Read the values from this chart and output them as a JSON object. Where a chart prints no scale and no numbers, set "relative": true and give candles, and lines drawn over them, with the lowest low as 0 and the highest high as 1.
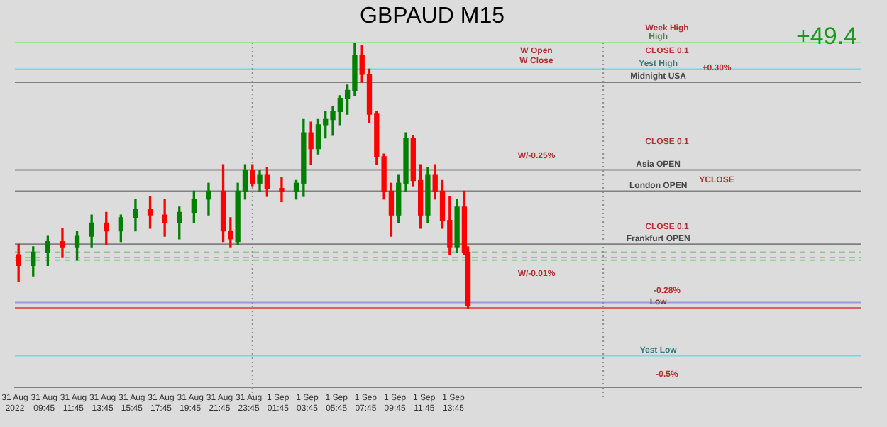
{
  "chart_data": {
    "type": "candlestick",
    "title": "GBPAUD M15",
    "relative": true,
    "x": [
      "2022-08-31T08:00",
      "2022-08-31T09:00",
      "2022-08-31T10:00",
      "2022-08-31T11:00",
      "2022-08-31T12:00",
      "2022-08-31T13:00",
      "2022-08-31T14:00",
      "2022-08-31T15:00",
      "2022-08-31T16:00",
      "2022-08-31T17:00",
      "2022-08-31T18:00",
      "2022-08-31T19:00",
      "2022-08-31T20:00",
      "2022-08-31T21:00",
      "2022-08-31T22:00",
      "2022-08-31T22:30",
      "2022-08-31T23:00",
      "2022-08-31T23:30",
      "2022-09-01T00:00",
      "2022-09-01T00:30",
      "2022-09-01T01:00",
      "2022-09-01T02:00",
      "2022-09-01T03:00",
      "2022-09-01T03:30",
      "2022-09-01T04:00",
      "2022-09-01T04:30",
      "2022-09-01T05:00",
      "2022-09-01T05:30",
      "2022-09-01T06:00",
      "2022-09-01T06:30",
      "2022-09-01T07:00",
      "2022-09-01T07:30",
      "2022-09-01T08:00",
      "2022-09-01T08:30",
      "2022-09-01T09:00",
      "2022-09-01T09:30",
      "2022-09-01T10:00",
      "2022-09-01T10:30",
      "2022-09-01T11:00",
      "2022-09-01T11:30",
      "2022-09-01T12:00",
      "2022-09-01T12:30",
      "2022-09-01T13:00",
      "2022-09-01T13:30",
      "2022-09-01T14:00",
      "2022-09-01T14:30",
      "2022-09-01T14:45"
    ],
    "ohlc": [
      [
        0.2,
        0.24,
        0.1,
        0.16
      ],
      [
        0.16,
        0.23,
        0.12,
        0.21
      ],
      [
        0.21,
        0.27,
        0.16,
        0.25
      ],
      [
        0.25,
        0.3,
        0.19,
        0.23
      ],
      [
        0.23,
        0.29,
        0.18,
        0.27
      ],
      [
        0.27,
        0.35,
        0.23,
        0.32
      ],
      [
        0.32,
        0.36,
        0.24,
        0.29
      ],
      [
        0.29,
        0.35,
        0.25,
        0.34
      ],
      [
        0.34,
        0.41,
        0.29,
        0.37
      ],
      [
        0.37,
        0.42,
        0.3,
        0.35
      ],
      [
        0.35,
        0.41,
        0.27,
        0.32
      ],
      [
        0.32,
        0.38,
        0.26,
        0.36
      ],
      [
        0.36,
        0.44,
        0.32,
        0.41
      ],
      [
        0.41,
        0.47,
        0.35,
        0.44
      ],
      [
        0.44,
        0.54,
        0.25,
        0.29
      ],
      [
        0.29,
        0.34,
        0.23,
        0.26
      ],
      [
        0.25,
        0.47,
        0.24,
        0.44
      ],
      [
        0.44,
        0.54,
        0.41,
        0.52
      ],
      [
        0.52,
        0.54,
        0.46,
        0.47
      ],
      [
        0.47,
        0.52,
        0.44,
        0.5
      ],
      [
        0.5,
        0.53,
        0.42,
        0.45
      ],
      [
        0.45,
        0.49,
        0.4,
        0.44
      ],
      [
        0.44,
        0.48,
        0.41,
        0.47
      ],
      [
        0.47,
        0.71,
        0.42,
        0.66
      ],
      [
        0.66,
        0.7,
        0.54,
        0.6
      ],
      [
        0.6,
        0.71,
        0.58,
        0.69
      ],
      [
        0.69,
        0.74,
        0.64,
        0.71
      ],
      [
        0.71,
        0.76,
        0.65,
        0.74
      ],
      [
        0.74,
        0.8,
        0.69,
        0.79
      ],
      [
        0.79,
        0.84,
        0.73,
        0.82
      ],
      [
        0.82,
        1.0,
        0.8,
        0.95
      ],
      [
        0.95,
        0.99,
        0.85,
        0.88
      ],
      [
        0.88,
        0.9,
        0.7,
        0.73
      ],
      [
        0.73,
        0.74,
        0.54,
        0.57
      ],
      [
        0.57,
        0.58,
        0.41,
        0.44
      ],
      [
        0.44,
        0.47,
        0.27,
        0.35
      ],
      [
        0.35,
        0.5,
        0.32,
        0.47
      ],
      [
        0.47,
        0.66,
        0.44,
        0.64
      ],
      [
        0.64,
        0.65,
        0.46,
        0.48
      ],
      [
        0.48,
        0.54,
        0.3,
        0.35
      ],
      [
        0.35,
        0.53,
        0.32,
        0.5
      ],
      [
        0.5,
        0.54,
        0.41,
        0.44
      ],
      [
        0.44,
        0.48,
        0.3,
        0.33
      ],
      [
        0.33,
        0.42,
        0.2,
        0.23
      ],
      [
        0.23,
        0.41,
        0.21,
        0.38
      ],
      [
        0.38,
        0.44,
        0.2,
        0.21
      ],
      [
        0.21,
        0.23,
        0,
        0.01
      ]
    ],
    "colors": [
      "#ff0000",
      "#008000",
      "#008000",
      "#ff0000",
      "#008000",
      "#008000",
      "#ff0000",
      "#008000",
      "#008000",
      "#ff0000",
      "#ff0000",
      "#008000",
      "#008000",
      "#008000",
      "#ff0000",
      "#ff0000",
      "#008000",
      "#008000",
      "#ff0000",
      "#008000",
      "#ff0000",
      "#ff0000",
      "#008000",
      "#008000",
      "#ff0000",
      "#008000",
      "#008000",
      "#008000",
      "#008000",
      "#008000",
      "#008000",
      "#ff0000",
      "#ff0000",
      "#ff0000",
      "#ff0000",
      "#ff0000",
      "#008000",
      "#008000",
      "#ff0000",
      "#ff0000",
      "#008000",
      "#ff0000",
      "#ff0000",
      "#ff0000",
      "#008000",
      "#ff0000",
      "#ff0000"
    ],
    "xlim": [
      "2022-08-31T07:45",
      "2022-09-02T17:40"
    ],
    "xticks": [
      {
        "value": "2022-08-31T07:45",
        "label": "31 Aug 2022"
      },
      {
        "value": "2022-08-31T09:45",
        "label": "31 Aug 09:45"
      },
      {
        "value": "2022-08-31T11:45",
        "label": "31 Aug 11:45"
      },
      {
        "value": "2022-08-31T13:45",
        "label": "31 Aug 13:45"
      },
      {
        "value": "2022-08-31T15:45",
        "label": "31 Aug 15:45"
      },
      {
        "value": "2022-08-31T17:45",
        "label": "31 Aug 17:45"
      },
      {
        "value": "2022-08-31T19:45",
        "label": "31 Aug 19:45"
      },
      {
        "value": "2022-08-31T21:45",
        "label": "31 Aug 21:45"
      },
      {
        "value": "2022-08-31T23:45",
        "label": "31 Aug 23:45"
      },
      {
        "value": "2022-09-01T01:45",
        "label": "1 Sep 01:45"
      },
      {
        "value": "2022-09-01T03:45",
        "label": "1 Sep 03:45"
      },
      {
        "value": "2022-09-01T05:45",
        "label": "1 Sep 05:45"
      },
      {
        "value": "2022-09-01T07:45",
        "label": "1 Sep 07:45"
      },
      {
        "value": "2022-09-01T09:45",
        "label": "1 Sep 09:45"
      },
      {
        "value": "2022-09-01T11:45",
        "label": "1 Sep 11:45"
      },
      {
        "value": "2022-09-01T13:45",
        "label": "1 Sep 13:45"
      }
    ],
    "ref_lines": [
      {
        "axis": "y",
        "value": 1.0,
        "label": "High",
        "color": "#9be09b"
      },
      {
        "axis": "y",
        "value": 0.9,
        "label": "Yest High",
        "color": "#66e0e0"
      },
      {
        "axis": "y",
        "value": 0.85,
        "label": "Midnight USA",
        "color": "#808080"
      },
      {
        "axis": "y",
        "value": 0.52,
        "label": "Asia OPEN",
        "color": "#808080"
      },
      {
        "axis": "y",
        "value": 0.44,
        "label": "London OPEN",
        "color": "#808080"
      },
      {
        "axis": "y",
        "value": 0.24,
        "label": "Frankfurt OPEN",
        "color": "#808080"
      },
      {
        "axis": "y",
        "value": 0.21,
        "color": "#90c890",
        "line_style": "dashed"
      },
      {
        "axis": "y",
        "value": 0.19,
        "color": "#90c890",
        "line_style": "dashed"
      },
      {
        "axis": "y",
        "value": 0.18,
        "color": "#90c890",
        "line_style": "dashed"
      },
      {
        "axis": "y",
        "value": 0.02,
        "color": "#9999dd"
      },
      {
        "axis": "y",
        "value": 0,
        "label": "Low",
        "color": "#e06060"
      },
      {
        "axis": "y",
        "value": -0.18,
        "label": "Yest Low",
        "color": "#66e0e0"
      },
      {
        "axis": "x",
        "value": "2022-09-01T00:00",
        "color": "#909090",
        "line_style": "dotted"
      },
      {
        "axis": "x",
        "value": "2022-09-02T00:00",
        "color": "#909090",
        "line_style": "dotted"
      }
    ],
    "annotations": [
      "+49.4",
      "Week High",
      "W Open",
      "W Close",
      "CLOSE 0.1",
      "+0.30%",
      "CLOSE 0.1",
      "W/-0.25%",
      "YCLOSE",
      "CLOSE 0.1",
      "W/-0.01%",
      "-0.28%",
      "-0.5%"
    ]
  }
}
